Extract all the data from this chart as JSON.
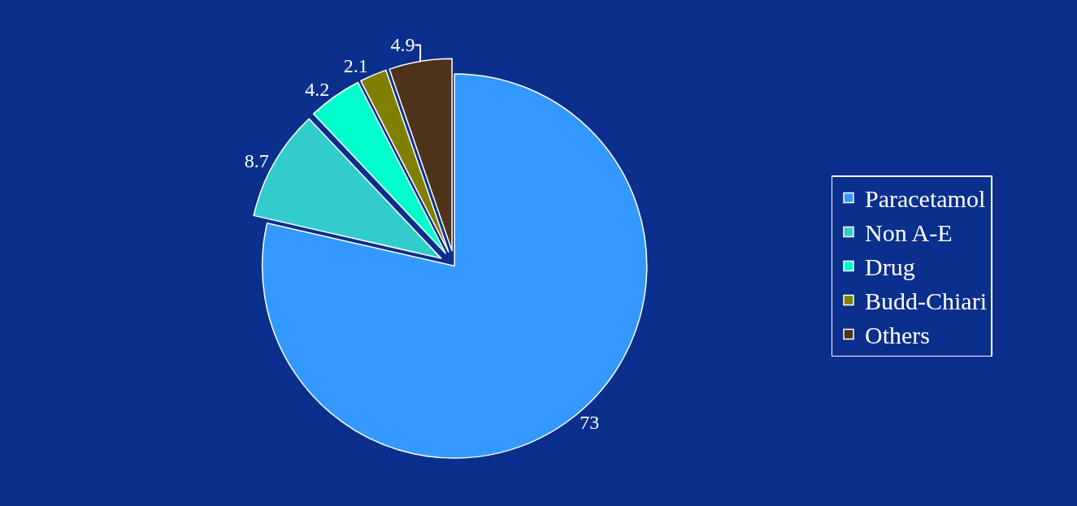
{
  "chart_data": {
    "type": "pie",
    "categories": [
      "Paracetamol",
      "Non A-E",
      "Drug",
      "Budd-Chiari",
      "Others"
    ],
    "values": [
      73,
      8.7,
      4.2,
      2.1,
      4.9
    ],
    "colors": [
      "#3399ff",
      "#33cccc",
      "#00ffcc",
      "#808000",
      "#4d3319"
    ],
    "data_labels": true,
    "legend": "right"
  }
}
